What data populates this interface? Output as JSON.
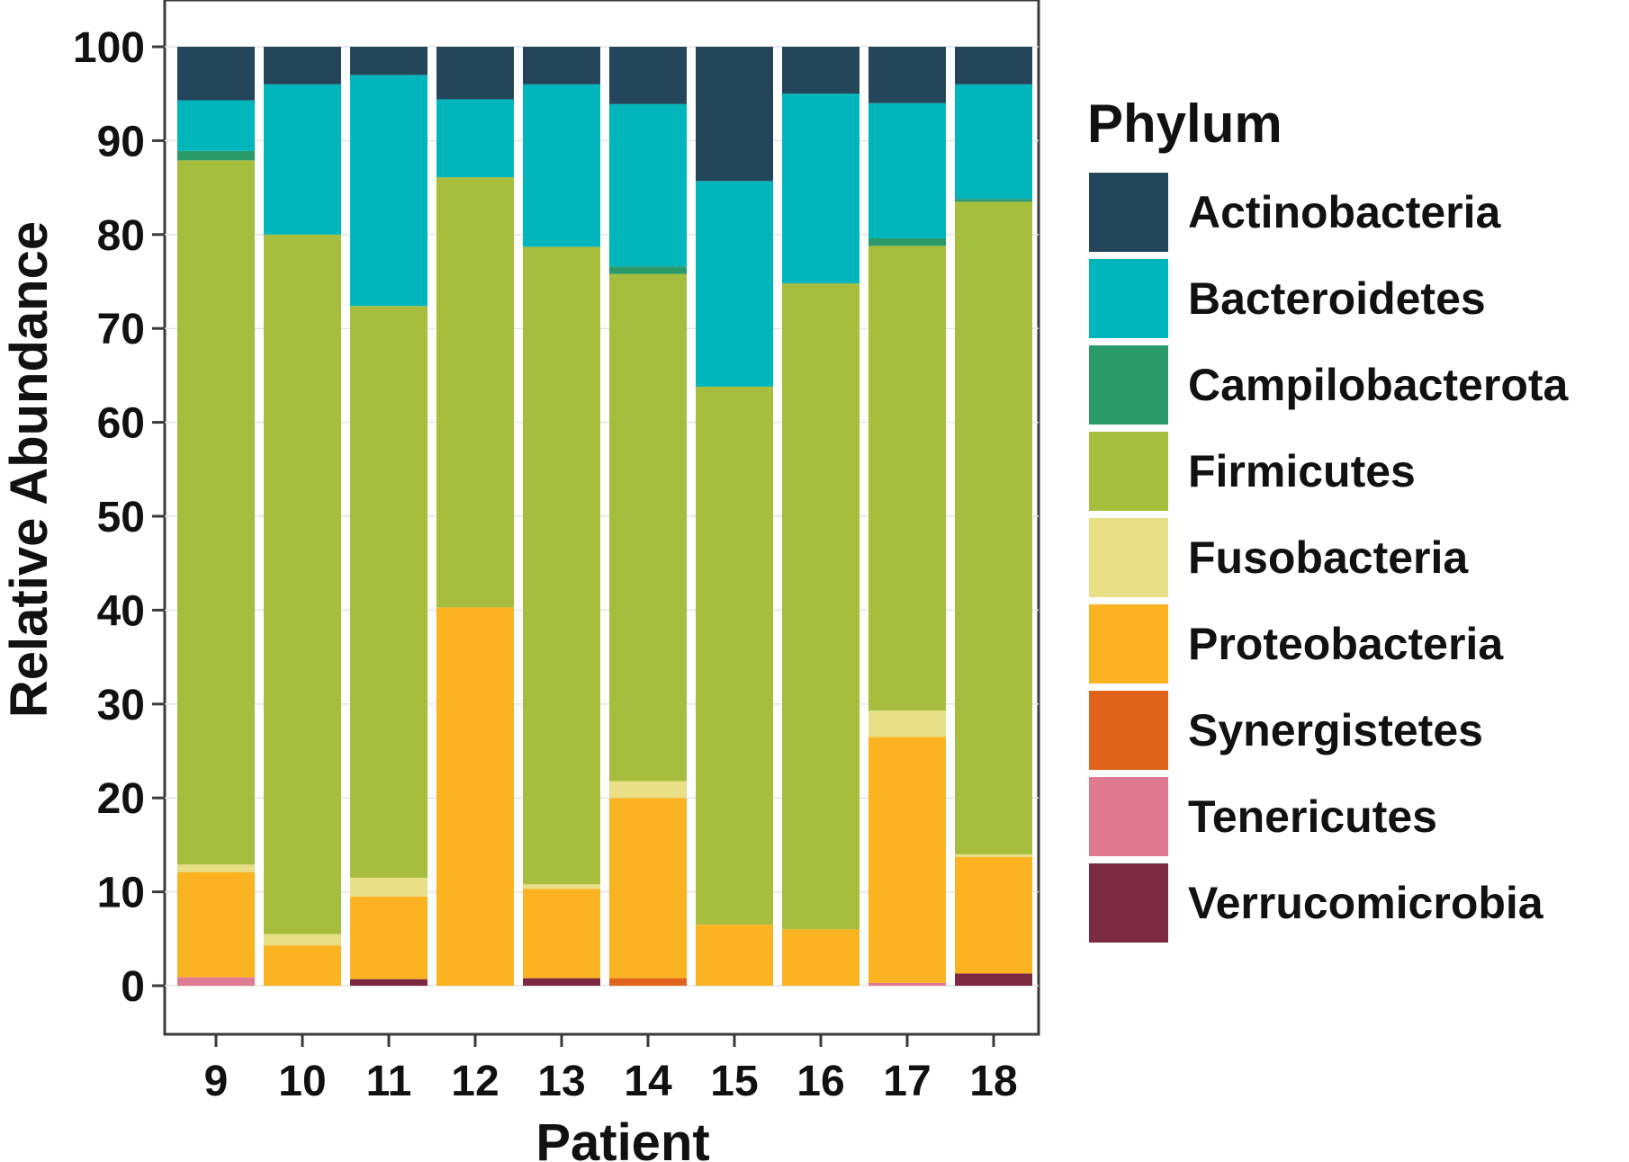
{
  "chart_data": {
    "type": "bar",
    "stacked": true,
    "xlabel": "Patient",
    "ylabel": "Relative Abundance",
    "ylim": [
      0,
      100
    ],
    "yticks": [
      0,
      10,
      20,
      30,
      40,
      50,
      60,
      70,
      80,
      90,
      100
    ],
    "grid": true,
    "legend_position": "right",
    "legend_title": "Phylum",
    "categories": [
      "9",
      "10",
      "11",
      "12",
      "13",
      "14",
      "15",
      "16",
      "17",
      "18"
    ],
    "series": [
      {
        "name": "Verrucomicrobia",
        "color": "#7B2A42",
        "values": [
          0.0,
          0.0,
          0.7,
          0.0,
          0.8,
          0.0,
          0.0,
          0.0,
          0.0,
          1.3
        ]
      },
      {
        "name": "Tenericutes",
        "color": "#E07A92",
        "values": [
          0.9,
          0.0,
          0.0,
          0.0,
          0.0,
          0.0,
          0.0,
          0.0,
          0.3,
          0.0
        ]
      },
      {
        "name": "Synergistetes",
        "color": "#E0621B",
        "values": [
          0.0,
          0.0,
          0.0,
          0.0,
          0.0,
          0.8,
          0.0,
          0.0,
          0.0,
          0.0
        ]
      },
      {
        "name": "Proteobacteria",
        "color": "#FBB321",
        "values": [
          11.2,
          4.3,
          8.8,
          40.3,
          9.5,
          19.2,
          6.5,
          6.0,
          26.2,
          12.4
        ]
      },
      {
        "name": "Fusobacteria",
        "color": "#E8DF86",
        "values": [
          0.8,
          1.2,
          2.0,
          0.0,
          0.5,
          1.8,
          0.0,
          0.0,
          2.8,
          0.3
        ]
      },
      {
        "name": "Firmicutes",
        "color": "#A6BD3E",
        "values": [
          75.0,
          74.5,
          60.9,
          45.8,
          67.9,
          54.0,
          57.3,
          68.8,
          49.5,
          69.5
        ]
      },
      {
        "name": "Campilobacterota",
        "color": "#2B9A6A",
        "values": [
          1.0,
          0.0,
          0.0,
          0.0,
          0.0,
          0.8,
          0.0,
          0.0,
          0.8,
          0.3
        ]
      },
      {
        "name": "Bacteroidetes",
        "color": "#00B6BC",
        "values": [
          5.4,
          16.0,
          24.6,
          8.3,
          17.3,
          17.3,
          21.9,
          20.2,
          14.4,
          12.2
        ]
      },
      {
        "name": "Actinobacteria",
        "color": "#24465A",
        "values": [
          5.7,
          4.0,
          3.0,
          5.6,
          4.0,
          6.1,
          14.3,
          5.0,
          6.0,
          4.0
        ]
      }
    ],
    "legend_order": [
      "Actinobacteria",
      "Bacteroidetes",
      "Campilobacterota",
      "Firmicutes",
      "Fusobacteria",
      "Proteobacteria",
      "Synergistetes",
      "Tenericutes",
      "Verrucomicrobia"
    ]
  }
}
